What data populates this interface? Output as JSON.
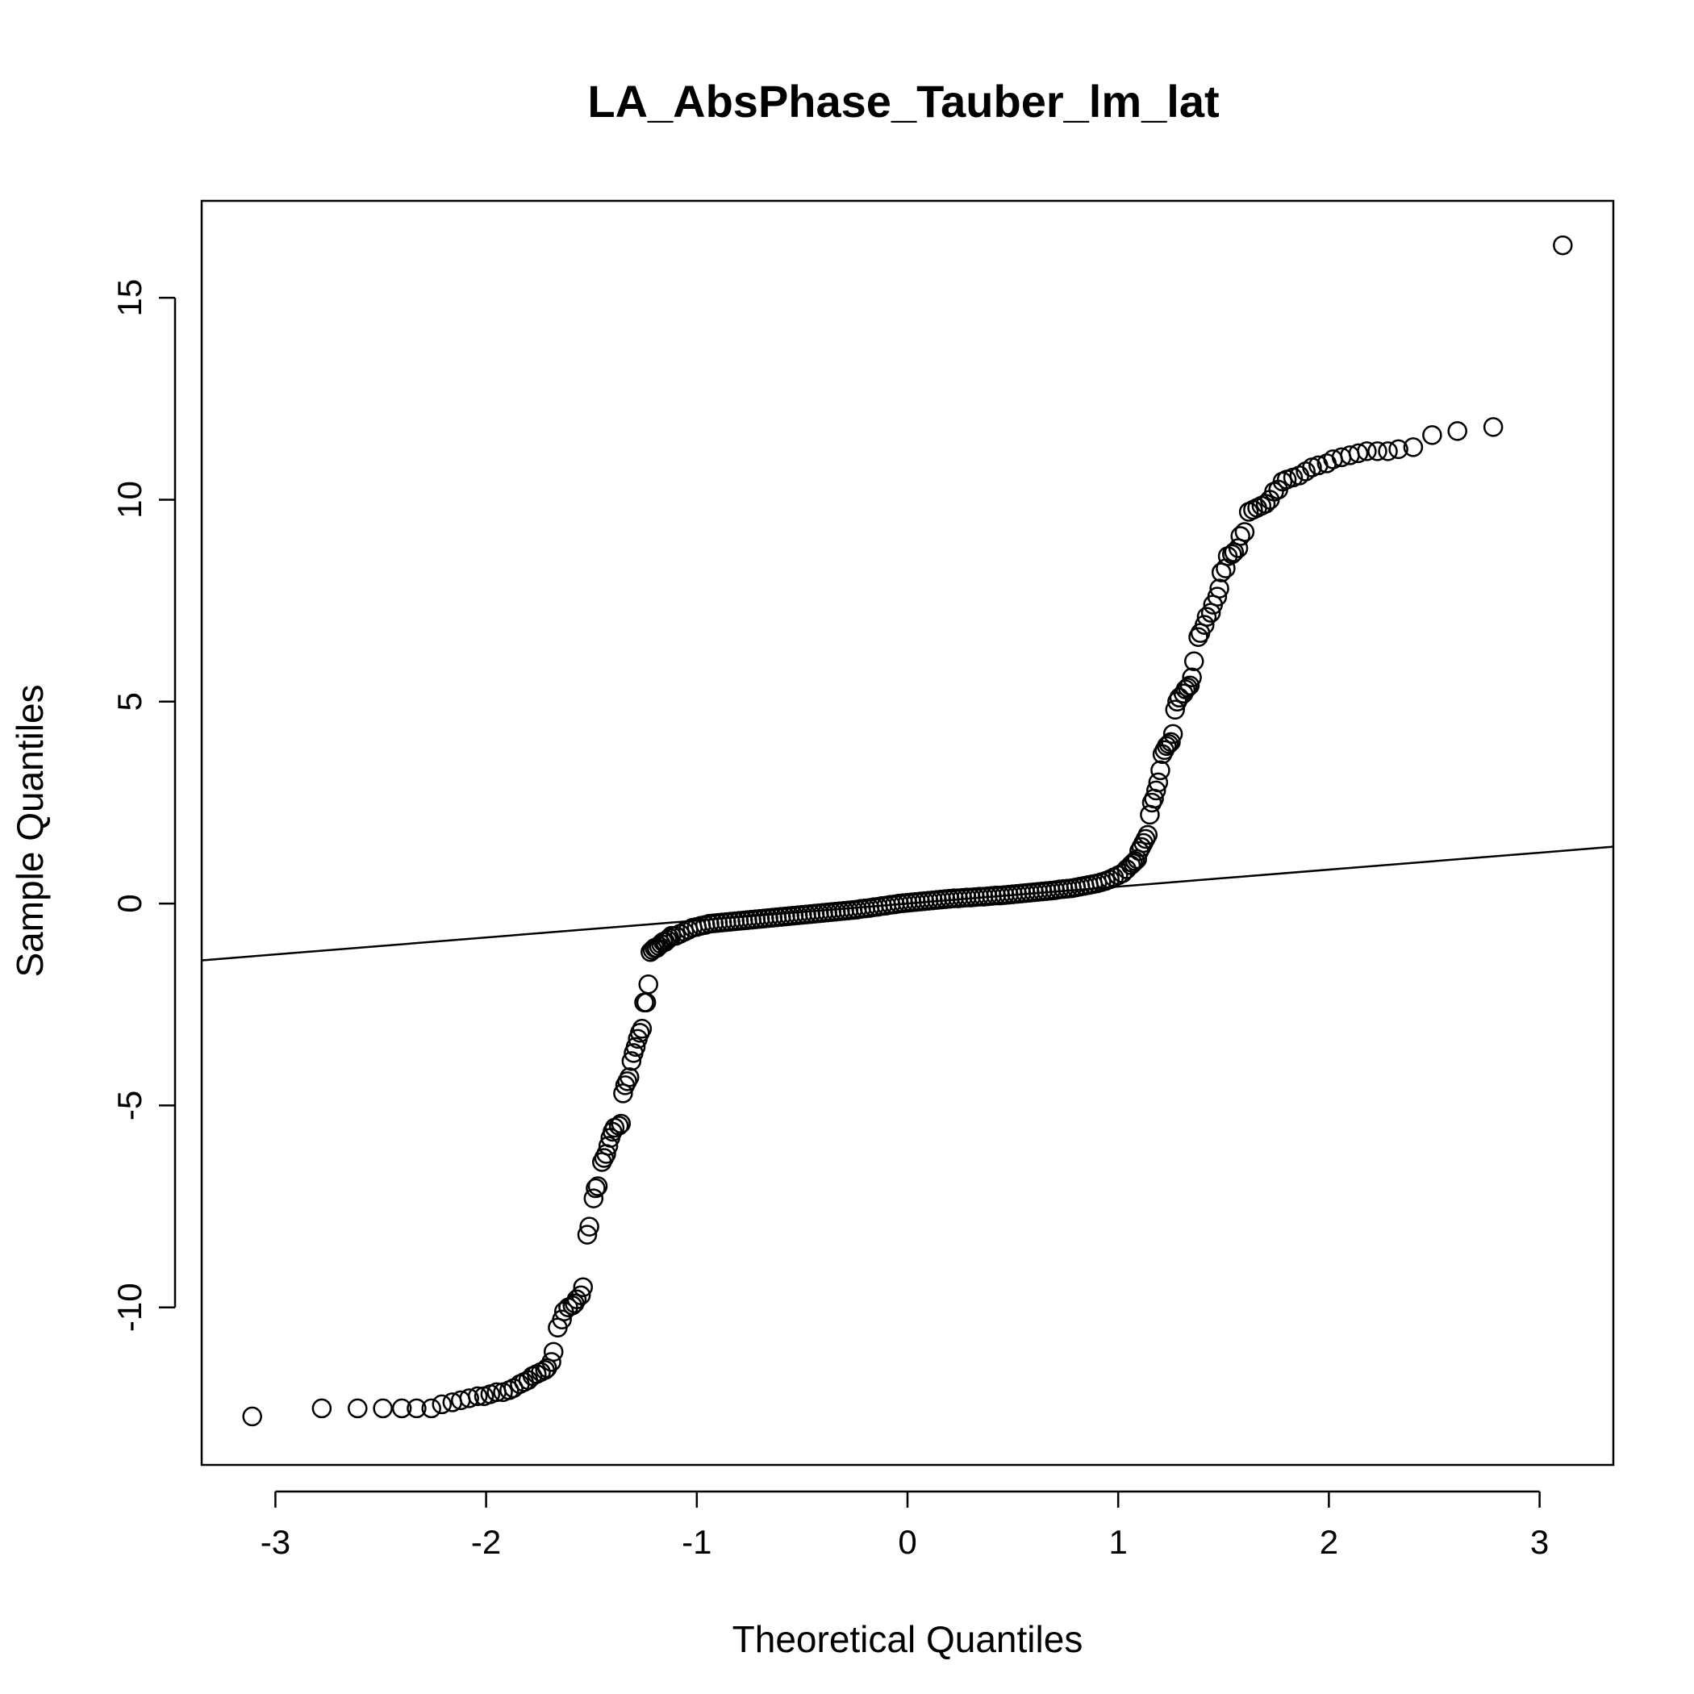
{
  "chart_data": {
    "type": "scatter",
    "title": "LA_AbsPhase_Tauber_lm_lat",
    "xlabel": "Theoretical Quantiles",
    "ylabel": "Sample Quantiles",
    "xlim": [
      -3.35,
      3.35
    ],
    "ylim": [
      -13.9,
      17.4
    ],
    "x_ticks": [
      -3,
      -2,
      -1,
      0,
      1,
      2,
      3
    ],
    "x_tick_labels": [
      "-3",
      "-2",
      "-1",
      "0",
      "1",
      "2",
      "3"
    ],
    "y_ticks": [
      -10,
      -5,
      0,
      5,
      10,
      15
    ],
    "y_tick_labels": [
      "-10",
      "-5",
      "0",
      "5",
      "10",
      "15"
    ],
    "grid": false,
    "marker": "open-circle",
    "reference_line": {
      "intercept": 0,
      "slope": 0.42
    },
    "series": [
      {
        "points": [
          [
            -3.11,
            -12.7
          ],
          [
            -2.78,
            -12.5
          ],
          [
            -2.61,
            -12.5
          ],
          [
            -2.49,
            -12.5
          ],
          [
            -2.4,
            -12.5
          ],
          [
            -2.33,
            -12.5
          ],
          [
            -2.26,
            -12.5
          ],
          [
            -2.21,
            -12.4
          ],
          [
            -2.16,
            -12.35
          ],
          [
            -2.12,
            -12.3
          ],
          [
            -2.08,
            -12.25
          ],
          [
            -2.04,
            -12.2
          ],
          [
            -2.01,
            -12.2
          ],
          [
            -1.98,
            -12.15
          ],
          [
            -1.95,
            -12.1
          ],
          [
            -1.92,
            -12.1
          ],
          [
            -1.89,
            -12.05
          ],
          [
            -1.87,
            -12.0
          ],
          [
            -1.84,
            -11.9
          ],
          [
            -1.82,
            -11.85
          ],
          [
            -1.8,
            -11.8
          ],
          [
            -1.78,
            -11.7
          ],
          [
            -1.76,
            -11.65
          ],
          [
            -1.74,
            -11.6
          ],
          [
            -1.72,
            -11.55
          ],
          [
            -1.71,
            -11.5
          ],
          [
            -1.69,
            -11.35
          ],
          [
            -1.68,
            -11.1
          ],
          [
            -1.66,
            -10.5
          ],
          [
            -1.64,
            -10.3
          ],
          [
            -1.63,
            -10.1
          ],
          [
            -1.61,
            -10.0
          ],
          [
            -1.59,
            -9.95
          ],
          [
            -1.58,
            -9.9
          ],
          [
            -1.57,
            -9.8
          ],
          [
            -1.55,
            -9.7
          ],
          [
            -1.54,
            -9.5
          ],
          [
            -1.52,
            -8.2
          ],
          [
            -1.51,
            -8.0
          ],
          [
            -1.49,
            -7.3
          ],
          [
            -1.48,
            -7.05
          ],
          [
            -1.47,
            -7.0
          ],
          [
            -1.45,
            -6.4
          ],
          [
            -1.44,
            -6.3
          ],
          [
            -1.43,
            -6.2
          ],
          [
            -1.42,
            -6.0
          ],
          [
            -1.41,
            -5.8
          ],
          [
            -1.4,
            -5.65
          ],
          [
            -1.39,
            -5.55
          ],
          [
            -1.37,
            -5.5
          ],
          [
            -1.36,
            -5.45
          ],
          [
            -1.35,
            -4.7
          ],
          [
            -1.34,
            -4.5
          ],
          [
            -1.33,
            -4.4
          ],
          [
            -1.32,
            -4.3
          ],
          [
            -1.31,
            -3.9
          ],
          [
            -1.3,
            -3.7
          ],
          [
            -1.29,
            -3.55
          ],
          [
            -1.28,
            -3.35
          ],
          [
            -1.27,
            -3.2
          ],
          [
            -1.26,
            -3.1
          ],
          [
            -1.25,
            -2.45
          ],
          [
            -1.24,
            -2.45
          ],
          [
            -1.23,
            -2.0
          ],
          [
            -1.22,
            -1.2
          ],
          [
            -1.21,
            -1.15
          ],
          [
            -1.2,
            -1.1
          ],
          [
            -1.19,
            -1.1
          ],
          [
            -1.18,
            -1.05
          ],
          [
            -1.17,
            -1.0
          ],
          [
            -1.16,
            -0.95
          ],
          [
            -1.15,
            -0.95
          ],
          [
            -1.14,
            -0.9
          ],
          [
            -1.13,
            -0.85
          ],
          [
            -1.12,
            -0.8
          ],
          [
            -1.1,
            -0.8
          ],
          [
            -1.08,
            -0.75
          ],
          [
            -1.06,
            -0.7
          ],
          [
            -1.04,
            -0.65
          ],
          [
            -1.02,
            -0.6
          ],
          [
            -1.0,
            -0.58
          ],
          [
            -0.98,
            -0.55
          ],
          [
            -0.96,
            -0.53
          ],
          [
            -0.94,
            -0.5
          ],
          [
            -0.92,
            -0.49
          ],
          [
            -0.9,
            -0.48
          ],
          [
            -0.88,
            -0.47
          ],
          [
            -0.86,
            -0.46
          ],
          [
            -0.84,
            -0.45
          ],
          [
            -0.82,
            -0.44
          ],
          [
            -0.8,
            -0.43
          ],
          [
            -0.78,
            -0.42
          ],
          [
            -0.76,
            -0.41
          ],
          [
            -0.74,
            -0.4
          ],
          [
            -0.72,
            -0.39
          ],
          [
            -0.7,
            -0.38
          ],
          [
            -0.68,
            -0.37
          ],
          [
            -0.66,
            -0.36
          ],
          [
            -0.64,
            -0.35
          ],
          [
            -0.62,
            -0.34
          ],
          [
            -0.6,
            -0.33
          ],
          [
            -0.58,
            -0.32
          ],
          [
            -0.56,
            -0.31
          ],
          [
            -0.54,
            -0.3
          ],
          [
            -0.52,
            -0.29
          ],
          [
            -0.5,
            -0.28
          ],
          [
            -0.48,
            -0.27
          ],
          [
            -0.46,
            -0.26
          ],
          [
            -0.44,
            -0.25
          ],
          [
            -0.42,
            -0.24
          ],
          [
            -0.4,
            -0.23
          ],
          [
            -0.38,
            -0.22
          ],
          [
            -0.36,
            -0.21
          ],
          [
            -0.34,
            -0.2
          ],
          [
            -0.32,
            -0.19
          ],
          [
            -0.3,
            -0.18
          ],
          [
            -0.28,
            -0.17
          ],
          [
            -0.26,
            -0.16
          ],
          [
            -0.24,
            -0.15
          ],
          [
            -0.22,
            -0.13
          ],
          [
            -0.2,
            -0.12
          ],
          [
            -0.18,
            -0.11
          ],
          [
            -0.16,
            -0.09
          ],
          [
            -0.14,
            -0.08
          ],
          [
            -0.12,
            -0.06
          ],
          [
            -0.1,
            -0.05
          ],
          [
            -0.08,
            -0.03
          ],
          [
            -0.06,
            -0.02
          ],
          [
            -0.04,
            0.0
          ],
          [
            -0.02,
            0.01
          ],
          [
            0.0,
            0.02
          ],
          [
            0.02,
            0.03
          ],
          [
            0.04,
            0.04
          ],
          [
            0.06,
            0.05
          ],
          [
            0.08,
            0.06
          ],
          [
            0.1,
            0.07
          ],
          [
            0.12,
            0.08
          ],
          [
            0.14,
            0.09
          ],
          [
            0.16,
            0.1
          ],
          [
            0.18,
            0.11
          ],
          [
            0.2,
            0.12
          ],
          [
            0.22,
            0.13
          ],
          [
            0.24,
            0.13
          ],
          [
            0.26,
            0.14
          ],
          [
            0.28,
            0.15
          ],
          [
            0.3,
            0.15
          ],
          [
            0.32,
            0.16
          ],
          [
            0.34,
            0.17
          ],
          [
            0.36,
            0.17
          ],
          [
            0.38,
            0.18
          ],
          [
            0.4,
            0.19
          ],
          [
            0.42,
            0.2
          ],
          [
            0.44,
            0.2
          ],
          [
            0.46,
            0.21
          ],
          [
            0.48,
            0.22
          ],
          [
            0.5,
            0.23
          ],
          [
            0.52,
            0.24
          ],
          [
            0.54,
            0.25
          ],
          [
            0.56,
            0.26
          ],
          [
            0.58,
            0.27
          ],
          [
            0.6,
            0.28
          ],
          [
            0.62,
            0.29
          ],
          [
            0.64,
            0.3
          ],
          [
            0.66,
            0.31
          ],
          [
            0.68,
            0.32
          ],
          [
            0.7,
            0.33
          ],
          [
            0.72,
            0.35
          ],
          [
            0.74,
            0.36
          ],
          [
            0.76,
            0.37
          ],
          [
            0.78,
            0.38
          ],
          [
            0.8,
            0.4
          ],
          [
            0.82,
            0.42
          ],
          [
            0.84,
            0.44
          ],
          [
            0.86,
            0.46
          ],
          [
            0.88,
            0.48
          ],
          [
            0.9,
            0.5
          ],
          [
            0.92,
            0.53
          ],
          [
            0.94,
            0.56
          ],
          [
            0.96,
            0.6
          ],
          [
            0.98,
            0.65
          ],
          [
            1.0,
            0.7
          ],
          [
            1.02,
            0.75
          ],
          [
            1.04,
            0.85
          ],
          [
            1.06,
            0.95
          ],
          [
            1.07,
            1.0
          ],
          [
            1.08,
            1.05
          ],
          [
            1.09,
            1.1
          ],
          [
            1.1,
            1.3
          ],
          [
            1.11,
            1.4
          ],
          [
            1.12,
            1.5
          ],
          [
            1.13,
            1.6
          ],
          [
            1.14,
            1.7
          ],
          [
            1.15,
            2.2
          ],
          [
            1.16,
            2.5
          ],
          [
            1.17,
            2.6
          ],
          [
            1.18,
            2.8
          ],
          [
            1.19,
            3.0
          ],
          [
            1.2,
            3.3
          ],
          [
            1.21,
            3.7
          ],
          [
            1.22,
            3.8
          ],
          [
            1.23,
            3.9
          ],
          [
            1.24,
            3.95
          ],
          [
            1.25,
            4.0
          ],
          [
            1.26,
            4.2
          ],
          [
            1.27,
            4.8
          ],
          [
            1.28,
            5.0
          ],
          [
            1.29,
            5.1
          ],
          [
            1.31,
            5.2
          ],
          [
            1.32,
            5.3
          ],
          [
            1.33,
            5.35
          ],
          [
            1.34,
            5.4
          ],
          [
            1.35,
            5.6
          ],
          [
            1.36,
            6.0
          ],
          [
            1.38,
            6.6
          ],
          [
            1.39,
            6.7
          ],
          [
            1.41,
            6.9
          ],
          [
            1.42,
            7.1
          ],
          [
            1.44,
            7.2
          ],
          [
            1.45,
            7.4
          ],
          [
            1.47,
            7.6
          ],
          [
            1.48,
            7.8
          ],
          [
            1.49,
            8.2
          ],
          [
            1.51,
            8.3
          ],
          [
            1.52,
            8.6
          ],
          [
            1.54,
            8.65
          ],
          [
            1.55,
            8.7
          ],
          [
            1.57,
            8.8
          ],
          [
            1.58,
            9.1
          ],
          [
            1.6,
            9.2
          ],
          [
            1.62,
            9.7
          ],
          [
            1.64,
            9.75
          ],
          [
            1.66,
            9.8
          ],
          [
            1.68,
            9.85
          ],
          [
            1.7,
            9.9
          ],
          [
            1.72,
            10.0
          ],
          [
            1.74,
            10.2
          ],
          [
            1.76,
            10.25
          ],
          [
            1.78,
            10.45
          ],
          [
            1.8,
            10.5
          ],
          [
            1.83,
            10.55
          ],
          [
            1.86,
            10.6
          ],
          [
            1.89,
            10.7
          ],
          [
            1.92,
            10.8
          ],
          [
            1.95,
            10.85
          ],
          [
            1.99,
            10.9
          ],
          [
            2.02,
            11.0
          ],
          [
            2.06,
            11.05
          ],
          [
            2.1,
            11.1
          ],
          [
            2.14,
            11.15
          ],
          [
            2.18,
            11.2
          ],
          [
            2.23,
            11.2
          ],
          [
            2.28,
            11.2
          ],
          [
            2.33,
            11.25
          ],
          [
            2.4,
            11.3
          ],
          [
            2.49,
            11.6
          ],
          [
            2.61,
            11.7
          ],
          [
            2.78,
            11.8
          ],
          [
            3.11,
            16.3
          ]
        ]
      }
    ]
  }
}
